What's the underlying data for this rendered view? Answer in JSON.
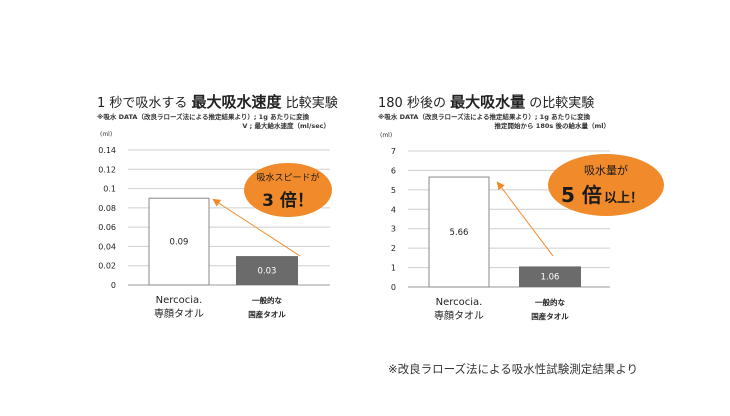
{
  "charts": [
    {
      "title_a": "1 秒で吸水する",
      "title_b": "最大吸水速度",
      "title_c": "比較実験",
      "note_line1": "※吸水 DATA（改良ラローズ法による推定結果より）; 1g あたりに変換",
      "note_line2": "V ; 最大給水速度（ml/sec）",
      "callout_lines": [
        "吸水スピードが"
      ],
      "callout_big": "3 倍！",
      "callout_suffix": ""
    },
    {
      "title_a": "180 秒後の",
      "title_b": "最大吸水量",
      "title_c": "の比較実験",
      "note_line1": "※吸水 DATA（改良ラローズ法による推定結果より）; 1g あたりに変換",
      "note_line2": "推定開始から 180s 後の給水量（ml）",
      "callout_lines": [
        "吸水量が"
      ],
      "callout_big": "5 倍",
      "callout_suffix": "以上！"
    }
  ],
  "chart_data": [
    {
      "type": "bar",
      "ylabel": "(ml)",
      "ylim": [
        0,
        0.14
      ],
      "yticks": [
        "0",
        "0.02",
        "0.04",
        "0.06",
        "0.08",
        "0.1",
        "0.12",
        "0.14"
      ],
      "categories": [
        [
          "Nercocia.",
          "専顔タオル"
        ],
        [
          "一般的な",
          "国産タオル"
        ]
      ],
      "values": [
        0.09,
        0.03
      ],
      "value_labels": [
        "0.09",
        "0.03"
      ],
      "bar_colors": [
        "#ffffff",
        "#6b6b6b"
      ],
      "grid": true
    },
    {
      "type": "bar",
      "ylabel": "(ml)",
      "ylim": [
        0,
        7
      ],
      "yticks": [
        "0",
        "1",
        "2",
        "3",
        "4",
        "5",
        "6",
        "7"
      ],
      "categories": [
        [
          "Nercocia.",
          "専顔タオル"
        ],
        [
          "一般的な",
          "国産タオル"
        ]
      ],
      "values": [
        5.66,
        1.06
      ],
      "value_labels": [
        "5.66",
        "1.06"
      ],
      "bar_colors": [
        "#ffffff",
        "#6b6b6b"
      ],
      "grid": true
    }
  ],
  "accent_color": "#f08a2a",
  "footnote": "※改良ラローズ法による吸水性試験測定結果より"
}
